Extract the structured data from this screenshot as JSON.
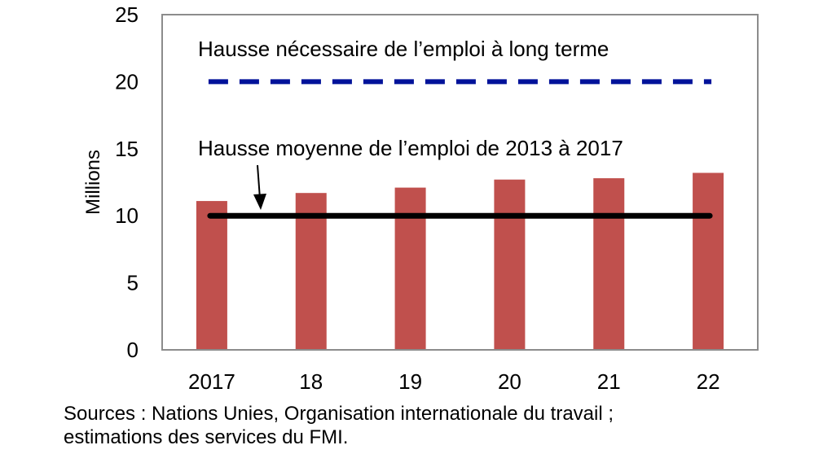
{
  "chart_data": {
    "type": "bar",
    "categories": [
      "2017",
      "18",
      "19",
      "20",
      "21",
      "22"
    ],
    "values": [
      11.1,
      11.7,
      12.1,
      12.7,
      12.8,
      13.2
    ],
    "ylabel": "Millions",
    "ylim": [
      0,
      25
    ],
    "yticks": [
      "0",
      "5",
      "10",
      "15",
      "20",
      "25"
    ],
    "bar_color": "#c0504d",
    "reference_lines": [
      {
        "label": "Hausse nécessaire de l’emploi à long terme",
        "value": 20,
        "style": "dashed",
        "color": "#00129a"
      },
      {
        "label": "Hausse moyenne de l’emploi de 2013 à 2017",
        "value": 10,
        "style": "solid",
        "color": "#000000"
      }
    ],
    "grid": false
  },
  "source": {
    "line1": "Sources : Nations Unies, Organisation internationale du travail ;",
    "line2": "estimations des services du FMI."
  }
}
